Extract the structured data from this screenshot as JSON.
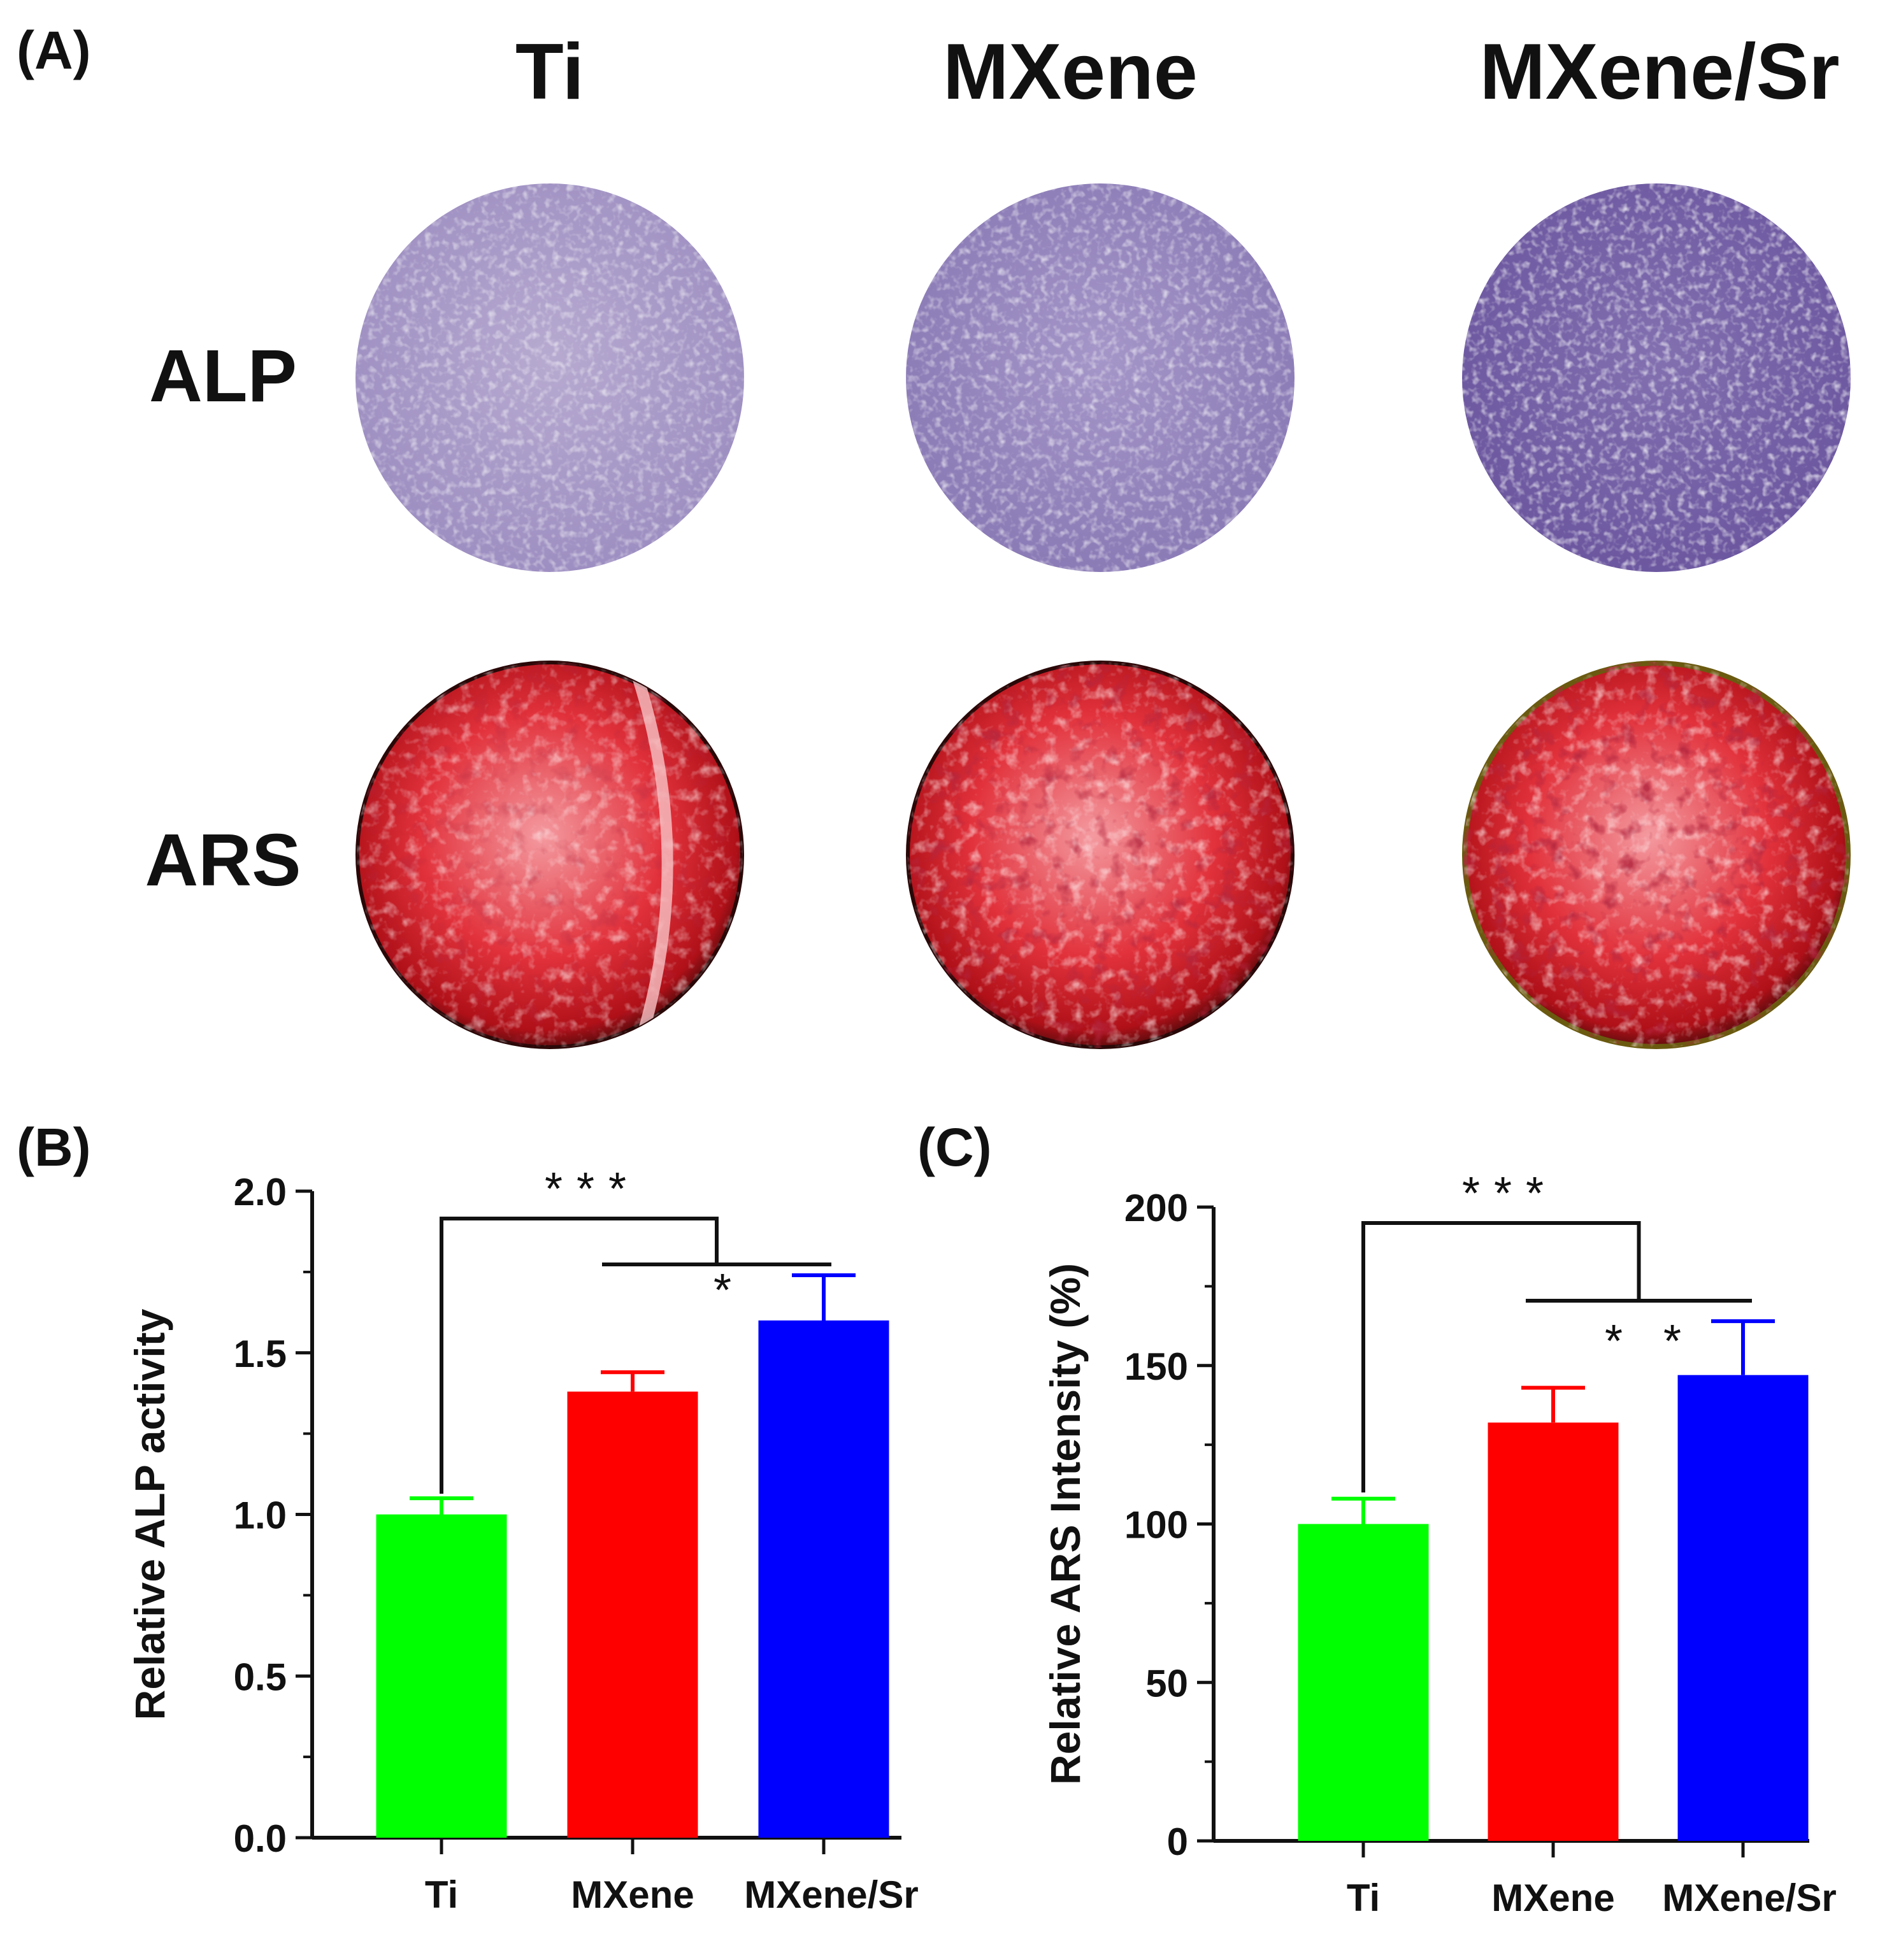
{
  "panels": {
    "A": "(A)",
    "B": "(B)",
    "C": "(C)"
  },
  "groups": [
    "Ti",
    "MXene",
    "MXene/Sr"
  ],
  "rows": [
    "ALP",
    "ARS"
  ],
  "colors": {
    "Ti": "#00ff00",
    "MXene": "#ff0000",
    "MXene/Sr": "#0000ff",
    "alp_stain": "#8a7ab4",
    "ars_stain": "#d21e28"
  },
  "chart_data": [
    {
      "type": "bar",
      "panel": "(B)",
      "categories": [
        "Ti",
        "MXene",
        "MXene/Sr"
      ],
      "values": [
        1.0,
        1.38,
        1.6
      ],
      "errors": [
        0.05,
        0.06,
        0.14
      ],
      "ylabel": "Relative ALP activity",
      "xlabel": "",
      "ylim": [
        0,
        2.0
      ],
      "ticks": [
        "0.0",
        "0.5",
        "1.0",
        "1.5",
        "2.0"
      ],
      "significance": [
        {
          "label": "***",
          "between": [
            "Ti",
            "MXene + MXene/Sr"
          ]
        },
        {
          "label": "*",
          "between": [
            "MXene",
            "MXene/Sr"
          ]
        }
      ]
    },
    {
      "type": "bar",
      "panel": "(C)",
      "categories": [
        "Ti",
        "MXene",
        "MXene/Sr"
      ],
      "values": [
        100,
        132,
        147
      ],
      "errors": [
        8,
        11,
        17
      ],
      "ylabel": "Relative ARS Intensity (%)",
      "xlabel": "",
      "ylim": [
        0,
        200
      ],
      "ticks": [
        "0",
        "50",
        "100",
        "150",
        "200"
      ],
      "significance": [
        {
          "label": "***",
          "between": [
            "Ti",
            "MXene + MXene/Sr"
          ]
        },
        {
          "label": "* *",
          "between": [
            "MXene",
            "MXene/Sr"
          ]
        }
      ]
    }
  ]
}
